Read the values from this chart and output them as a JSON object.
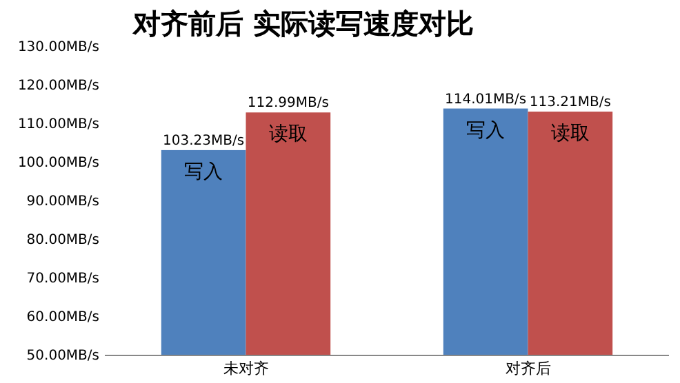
{
  "chart_data": {
    "type": "bar",
    "title": "对齐前后 实际读写速度对比",
    "categories": [
      "未对齐",
      "对齐后"
    ],
    "series": [
      {
        "name": "写入",
        "color": "#4f81bd",
        "values": [
          103.23,
          114.01
        ],
        "value_labels": [
          "103.23MB/s",
          "114.01MB/s"
        ]
      },
      {
        "name": "读取",
        "color": "#c0504d",
        "values": [
          112.99,
          113.21
        ],
        "value_labels": [
          "112.99MB/s",
          "113.21MB/s"
        ]
      }
    ],
    "ylim": [
      50,
      130
    ],
    "yticks": [
      {
        "value": 50,
        "label": "50.00MB/s"
      },
      {
        "value": 60,
        "label": "60.00MB/s"
      },
      {
        "value": 70,
        "label": "70.00MB/s"
      },
      {
        "value": 80,
        "label": "80.00MB/s"
      },
      {
        "value": 90,
        "label": "90.00MB/s"
      },
      {
        "value": 100,
        "label": "100.00MB/s"
      },
      {
        "value": 110,
        "label": "110.00MB/s"
      },
      {
        "value": 120,
        "label": "120.00MB/s"
      },
      {
        "value": 130,
        "label": "130.00MB/s"
      }
    ],
    "grid": false,
    "legend": false
  }
}
